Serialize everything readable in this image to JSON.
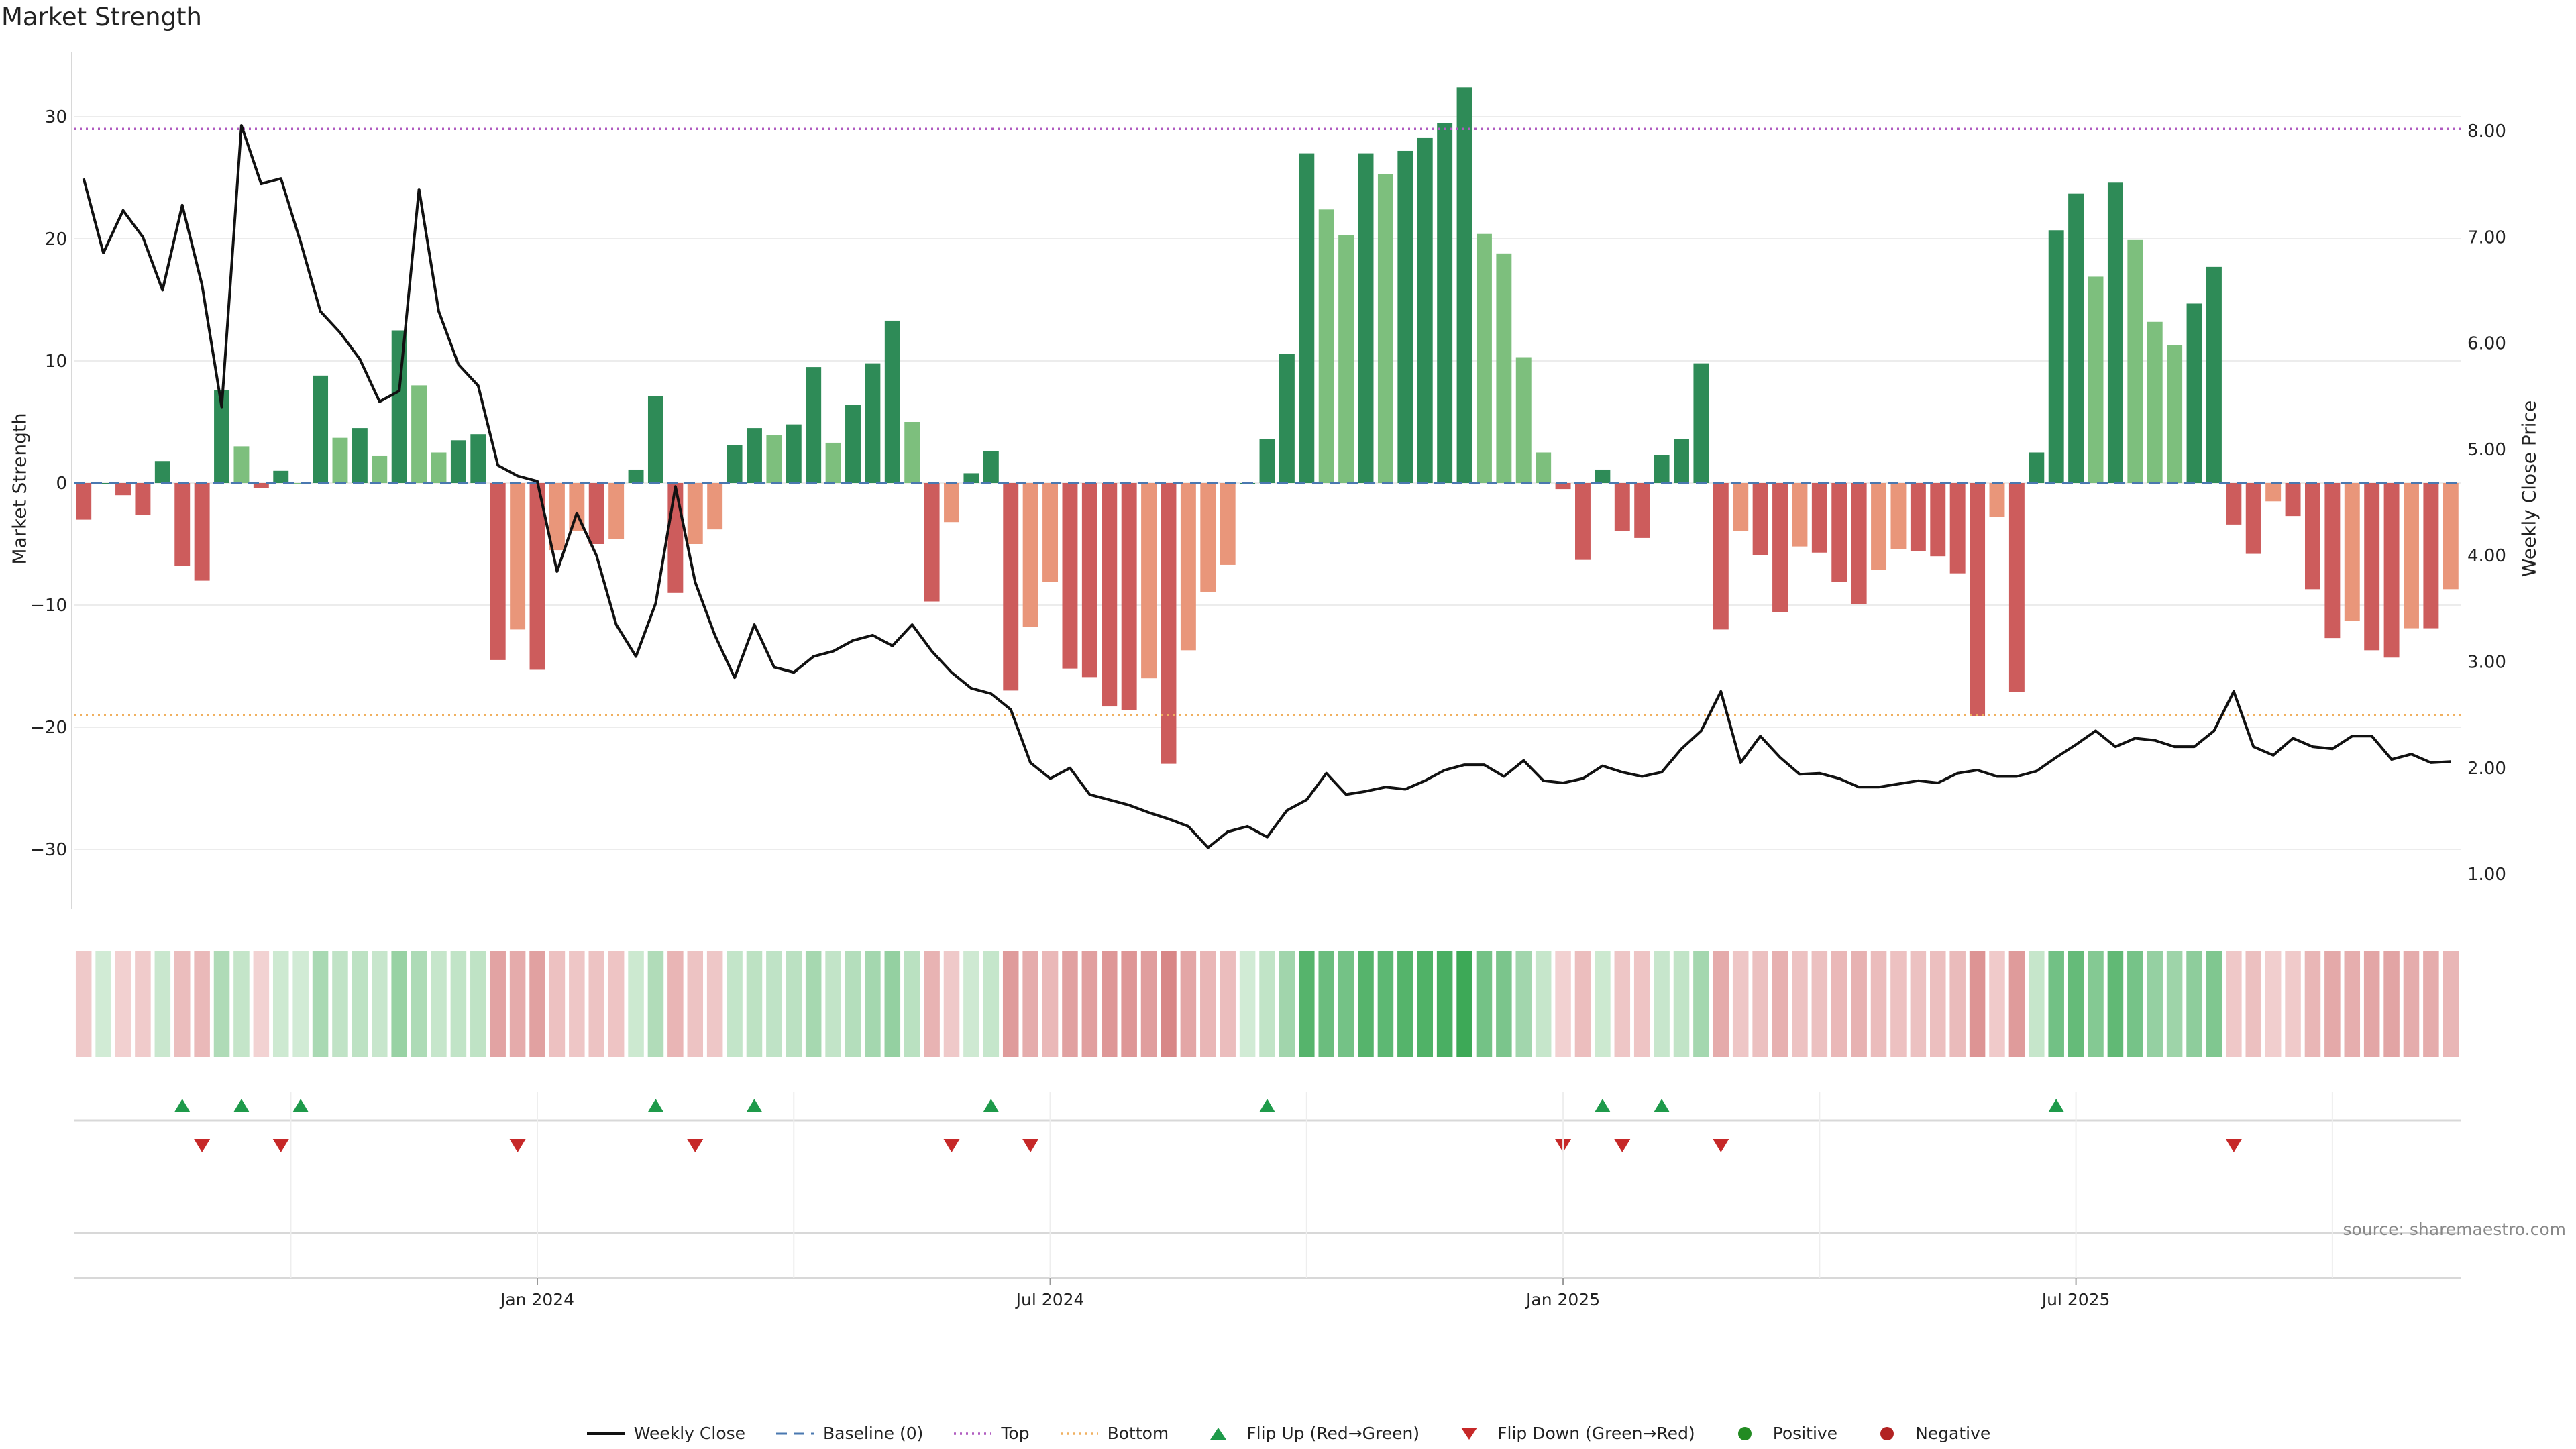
{
  "title": "Market Strength",
  "source": "source: sharemaestro.com",
  "colors": {
    "pos_dark": "#2e8b57",
    "pos_light": "#7dbf7d",
    "neg_dark": "#cd5c5c",
    "neg_light": "#e9967a",
    "line": "#111111",
    "baseline": "#4a78b0",
    "top": "#b05cc0",
    "bottom": "#f0b060",
    "flip_up": "#1e9a4a",
    "flip_down": "#c62828",
    "positive": "#228b22",
    "negative": "#b22222"
  },
  "legend": [
    {
      "label": "Weekly Close",
      "key": "line"
    },
    {
      "label": "Baseline (0)",
      "key": "baseline"
    },
    {
      "label": "Top",
      "key": "top"
    },
    {
      "label": "Bottom",
      "key": "bottom"
    },
    {
      "label": "Flip Up (Red→Green)",
      "key": "flip_up"
    },
    {
      "label": "Flip Down (Green→Red)",
      "key": "flip_down"
    },
    {
      "label": "Positive",
      "key": "positive"
    },
    {
      "label": "Negative",
      "key": "negative"
    }
  ],
  "chart_data": {
    "type": "bar",
    "title": "Market Strength",
    "ylabel": "Market Strength",
    "y2label": "Weekly Close Price",
    "ylim": [
      -35,
      35
    ],
    "y2lim": [
      0.6,
      8.8
    ],
    "yticks": [
      30,
      20,
      10,
      0,
      -10,
      -20,
      -30
    ],
    "y2ticks": [
      "8.00",
      "7.00",
      "6.00",
      "5.00",
      "4.00",
      "3.00",
      "2.00",
      "1.00"
    ],
    "x_ticks": [
      {
        "label": "Jan 2024",
        "index": 23
      },
      {
        "label": "Jul 2024",
        "index": 49
      },
      {
        "label": "Jan 2025",
        "index": 75
      },
      {
        "label": "Jul 2025",
        "index": 101
      }
    ],
    "top_line": 29,
    "bottom_line": -19,
    "strength": [
      -3,
      0,
      -1,
      -2.6,
      1.8,
      -6.8,
      -8,
      7.6,
      3,
      -0.4,
      1,
      0,
      8.8,
      3.7,
      4.5,
      2.2,
      12.5,
      8,
      2.5,
      3.5,
      4,
      -14.5,
      -12,
      -15.3,
      -5.5,
      -3.9,
      -5,
      -4.6,
      1.1,
      7.1,
      -9,
      -5,
      -3.8,
      3.1,
      4.5,
      3.9,
      4.8,
      9.5,
      3.3,
      6.4,
      9.8,
      13.3,
      5,
      -9.7,
      -3.2,
      0.8,
      2.6,
      -17,
      -11.8,
      -8.1,
      -15.2,
      -15.9,
      -18.3,
      -18.6,
      -16,
      -23,
      -13.7,
      -8.9,
      -6.7,
      0,
      3.6,
      10.6,
      27,
      22.4,
      20.3,
      27,
      25.3,
      27.2,
      28.3,
      29.5,
      32.4,
      20.4,
      18.8,
      10.3,
      2.5,
      -0.5,
      -6.3,
      1.1,
      -3.9,
      -4.5,
      2.3,
      3.6,
      9.8,
      -12,
      -3.9,
      -5.9,
      -10.6,
      -5.2,
      -5.7,
      -8.1,
      -9.9,
      -7.1,
      -5.4,
      -5.6,
      -6,
      -7.4,
      -19.1,
      -2.8,
      -17.1,
      2.5,
      20.7,
      23.7,
      16.9,
      24.6,
      19.9,
      13.2,
      11.3,
      14.7,
      17.7,
      -3.4,
      -5.8,
      -1.5,
      -2.7,
      -8.7,
      -12.7,
      -11.3,
      -13.7,
      -14.3,
      -11.9,
      -11.9,
      -8.7
    ],
    "weekly_close": [
      7.55,
      6.85,
      7.25,
      7.0,
      6.5,
      7.3,
      6.55,
      5.4,
      8.05,
      7.5,
      7.55,
      6.95,
      6.3,
      6.1,
      5.85,
      5.45,
      5.55,
      7.45,
      6.3,
      5.8,
      5.6,
      4.85,
      4.75,
      4.7,
      3.85,
      4.4,
      4.0,
      3.35,
      3.05,
      3.55,
      4.65,
      3.75,
      3.25,
      2.85,
      3.35,
      2.95,
      2.9,
      3.05,
      3.1,
      3.2,
      3.25,
      3.15,
      3.35,
      3.1,
      2.9,
      2.75,
      2.7,
      2.55,
      2.05,
      1.9,
      2.0,
      1.75,
      1.7,
      1.65,
      1.58,
      1.52,
      1.45,
      1.25,
      1.4,
      1.45,
      1.35,
      1.6,
      1.7,
      1.95,
      1.75,
      1.78,
      1.82,
      1.8,
      1.88,
      1.98,
      2.03,
      2.03,
      1.92,
      2.07,
      1.88,
      1.86,
      1.9,
      2.02,
      1.96,
      1.92,
      1.96,
      2.18,
      2.35,
      2.72,
      2.05,
      2.3,
      2.1,
      1.94,
      1.95,
      1.9,
      1.82,
      1.82,
      1.85,
      1.88,
      1.86,
      1.95,
      1.98,
      1.92,
      1.92,
      1.97,
      2.1,
      2.22,
      2.35,
      2.2,
      2.28,
      2.26,
      2.2,
      2.2,
      2.35,
      2.72,
      2.2,
      2.12,
      2.28,
      2.2,
      2.18,
      2.3,
      2.3,
      2.08,
      2.13,
      2.05,
      2.06
    ],
    "flip_up": [
      5,
      8,
      11,
      29,
      34,
      46,
      60,
      77,
      80,
      100
    ],
    "flip_down": [
      6,
      10,
      22,
      31,
      44,
      48,
      75,
      78,
      83,
      109
    ]
  }
}
